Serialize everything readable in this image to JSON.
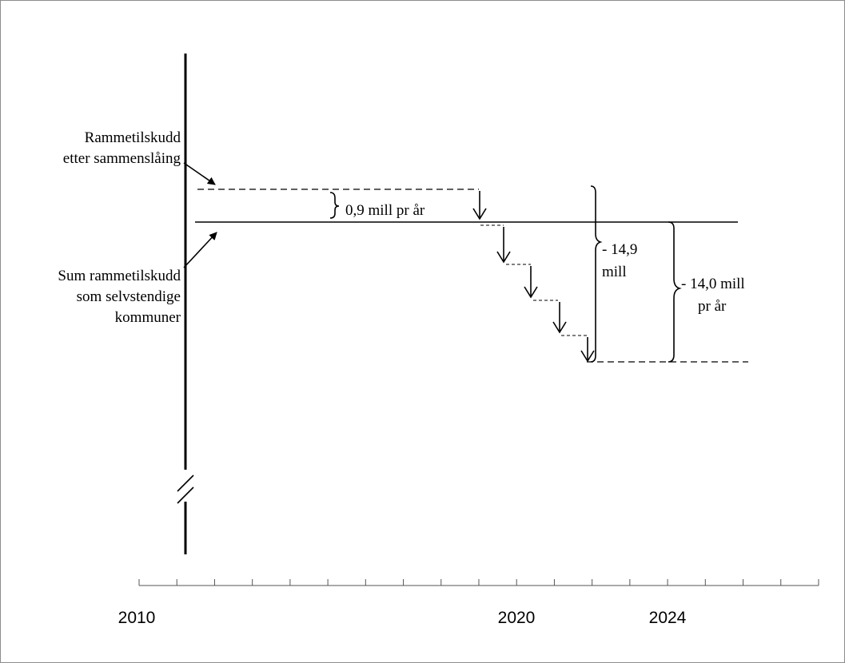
{
  "labels": {
    "framework_after_merger_line1": "Rammetilskudd",
    "framework_after_merger_line2": "etter sammenslåing",
    "sum_framework_line1": "Sum rammetilskudd",
    "sum_framework_line2": "som selvstendige",
    "sum_framework_line3": "kommuner",
    "difference_per_year": "0,9 mill pr år",
    "total_drop_line1": "- 14,9",
    "total_drop_line2": "mill",
    "net_drop_line1": "- 14,0 mill",
    "net_drop_line2": "pr år"
  },
  "axis": {
    "year_labels": [
      "2010",
      "2020",
      "2024"
    ]
  }
}
